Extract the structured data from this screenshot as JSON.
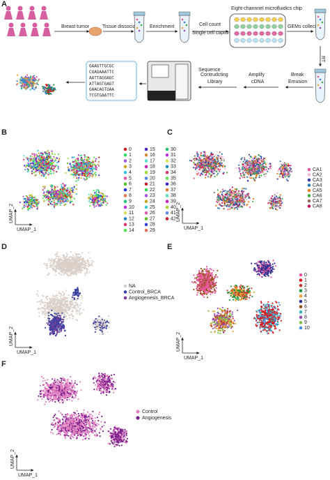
{
  "panel_a": {
    "label": "A",
    "steps": {
      "breast_tumor": "Breast tumor",
      "tissue_dissociation": "Tissue dissociation",
      "enrichment": "Enrichment",
      "cell_count": "Cell count",
      "single_cell_capture": "Single cell capture",
      "chip": "Eight-channnel microfluidics chip",
      "gems_collect": "GEMs collect",
      "rt": "RT",
      "break": "Break",
      "emusion": "Emusion",
      "amplify": "Amplify",
      "cdna": "cDNA",
      "contrudcting": "Contrudcting",
      "library": "Library",
      "sequence": "Sequence"
    },
    "sequences": [
      "GAAGTTGCGC",
      "CGAGAAATTC",
      "AATTAGGAGC",
      "ATTAGTGAGT",
      "GAACAGTGAA",
      "TCGTGAATTC"
    ]
  },
  "panel_b": {
    "label": "B",
    "legend": [
      "0",
      "1",
      "2",
      "3",
      "4",
      "5",
      "6",
      "7",
      "8",
      "9",
      "10",
      "11",
      "12",
      "13",
      "14",
      "15",
      "16",
      "17",
      "18",
      "19",
      "20",
      "21",
      "22",
      "23",
      "24",
      "25",
      "26",
      "27",
      "28",
      "29",
      "30",
      "31",
      "32",
      "33",
      "34",
      "35",
      "36",
      "37",
      "38",
      "39",
      "40",
      "41",
      "42"
    ],
    "x_axis": "UMAP_1",
    "y_axis": "UMAP_2"
  },
  "panel_c": {
    "label": "C",
    "legend": [
      "CA1",
      "CA2",
      "CA3",
      "CA4",
      "CA5",
      "CA6",
      "CA7",
      "CA8"
    ],
    "x_axis": "UMAP_1",
    "y_axis": "UMAP_2"
  },
  "panel_d": {
    "label": "D",
    "legend": [
      "NA",
      "Control_BRCA",
      "Angiogenesis_BRCA"
    ],
    "x_axis": "UMAP_1",
    "y_axis": "UMAP_2"
  },
  "panel_e": {
    "label": "E",
    "legend": [
      "0",
      "1",
      "2",
      "3",
      "4",
      "5",
      "6",
      "7",
      "8",
      "9",
      "10"
    ],
    "x_axis": "UMAP_1",
    "y_axis": "UMAP_2"
  },
  "panel_f": {
    "label": "F",
    "legend": [
      "Control",
      "Angiogenesis"
    ],
    "x_axis": "UMAP_1",
    "y_axis": "UMAP_2"
  }
}
